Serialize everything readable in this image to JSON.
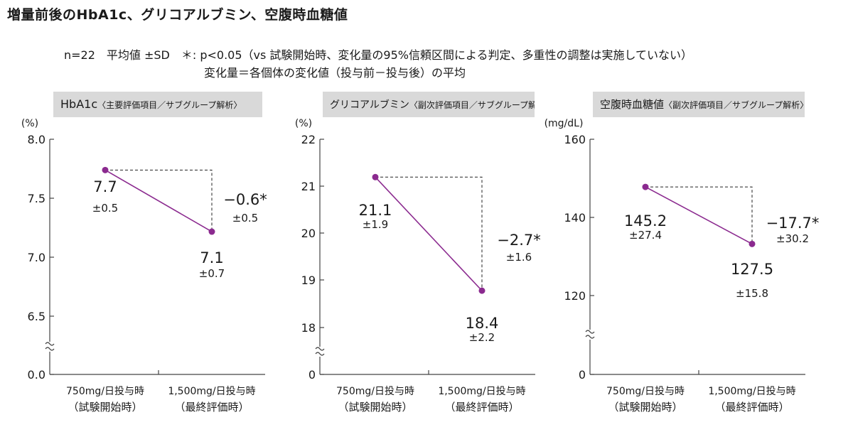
{
  "page": {
    "title": "増量前後のHbA1c、グリコアルブミン、空腹時血糖値",
    "note_line1": "n=22　平均値 ±SD　＊: p<0.05（vs 試験開始時、変化量の95%信頼区間による判定、多重性の調整は実施していない）",
    "note_line2": "変化量＝各個体の変化値（投与前－投与後）の平均"
  },
  "colors": {
    "line": "#8b2a8f",
    "marker": "#8b2a8f",
    "panel_bg": "#d9d9d9",
    "text": "#1a1a1a"
  },
  "chart_data": [
    {
      "type": "line",
      "title_main": "HbA1c",
      "title_sub": "〈主要評価項目／サブグループ解析〉",
      "unit": "(%)",
      "categories": [
        "750mg/日投与時\n（試験開始時）",
        "1,500mg/日投与時\n（最終評価時）"
      ],
      "values": [
        7.7,
        7.1
      ],
      "sd_labels": [
        "±0.5",
        "±0.7"
      ],
      "value_labels": [
        "7.7",
        "7.1"
      ],
      "change": "−0.6*",
      "change_sd": "±0.5",
      "y_ticks": [
        "8.0",
        "7.5",
        "7.0",
        "6.5",
        "0.0"
      ],
      "y_tick_values": [
        8.0,
        7.5,
        7.0,
        6.5,
        0
      ],
      "ylim": [
        6.0,
        8.0
      ],
      "axis_break": true
    },
    {
      "type": "line",
      "title_main": "グリコアルブミン",
      "title_sub": "〈副次評価項目／サブグループ解析〉",
      "unit": "(%)",
      "categories": [
        "750mg/日投与時\n（試験開始時）",
        "1,500mg/日投与時\n（最終評価時）"
      ],
      "values": [
        21.1,
        18.4
      ],
      "sd_labels": [
        "±1.9",
        "±2.2"
      ],
      "value_labels": [
        "21.1",
        "18.4"
      ],
      "change": "−2.7*",
      "change_sd": "±1.6",
      "y_ticks": [
        "22",
        "21",
        "20",
        "19",
        "18",
        "0"
      ],
      "y_tick_values": [
        22,
        21,
        20,
        19,
        18,
        0
      ],
      "ylim": [
        17.0,
        22.0
      ],
      "axis_break": true
    },
    {
      "type": "line",
      "title_main": "空腹時血糖値",
      "title_sub": "〈副次評価項目／サブグループ解析〉",
      "unit": "(mg/dL)",
      "categories": [
        "750mg/日投与時\n（試験開始時）",
        "1,500mg/日投与時\n（最終評価時）"
      ],
      "values": [
        145.2,
        127.5
      ],
      "sd_labels": [
        "±27.4",
        "±15.8"
      ],
      "value_labels": [
        "145.2",
        "127.5"
      ],
      "change": "−17.7*",
      "change_sd": "±30.2",
      "y_ticks": [
        "160",
        "140",
        "120",
        "0"
      ],
      "y_tick_values": [
        160,
        140,
        120,
        0
      ],
      "ylim": [
        100,
        160
      ],
      "axis_break": true
    }
  ]
}
